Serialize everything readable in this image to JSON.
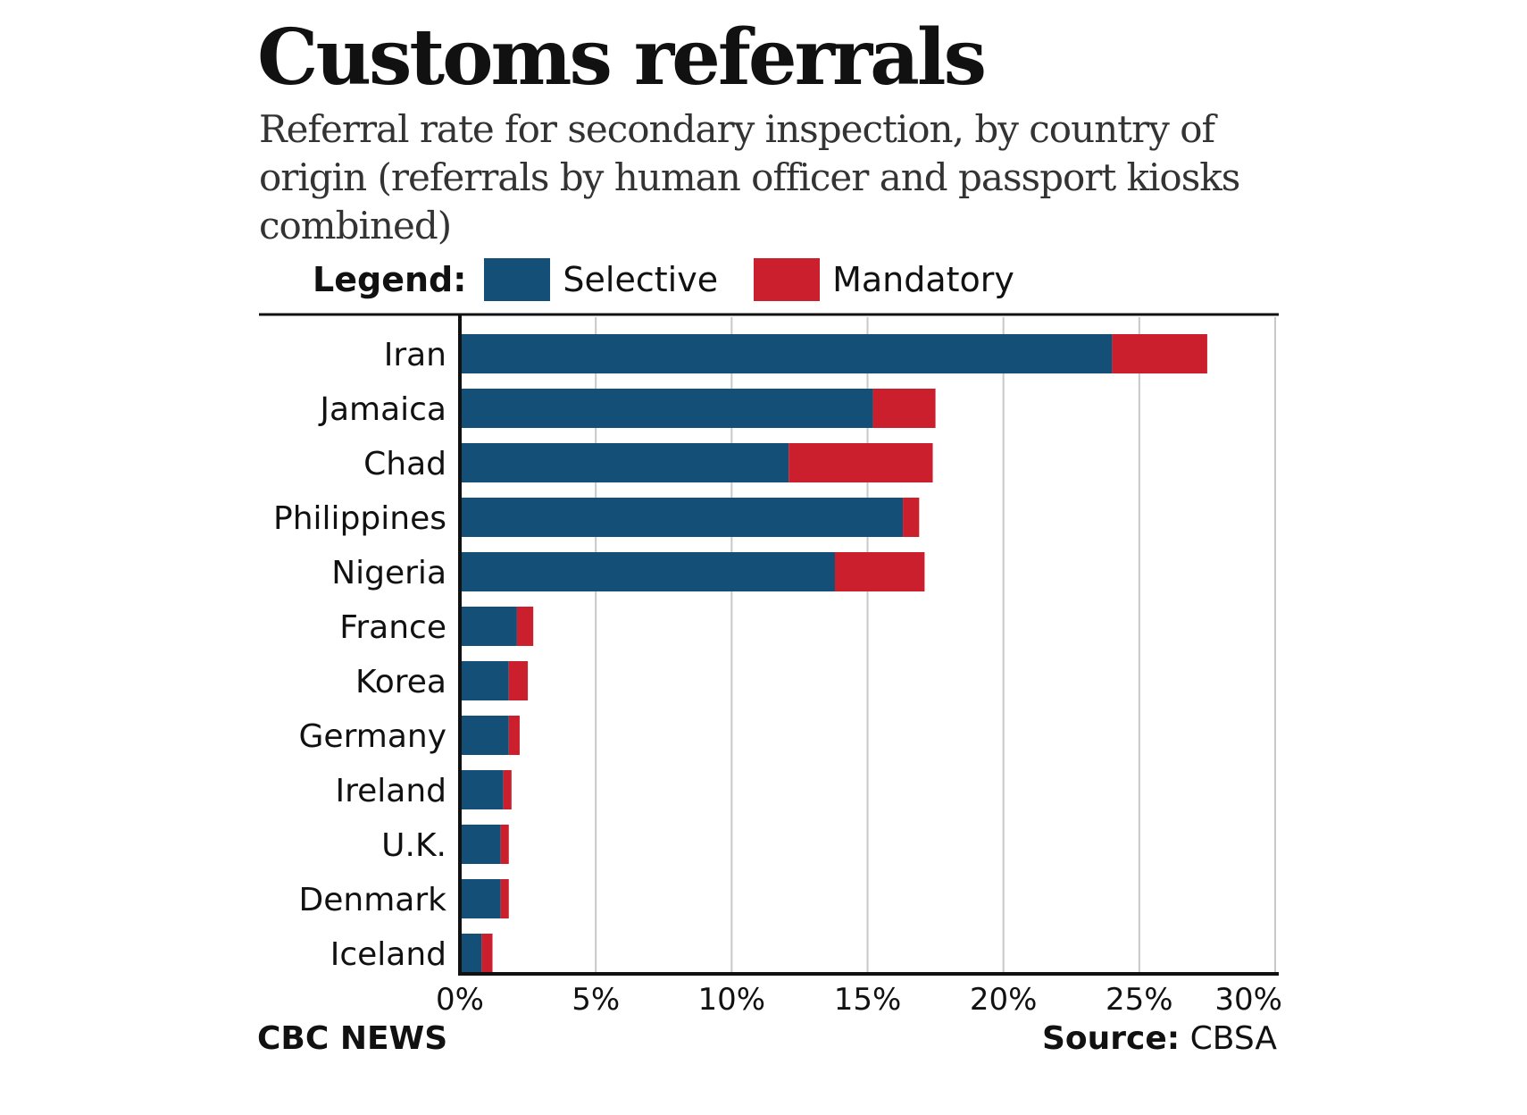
{
  "colors": {
    "selective": "#134f76",
    "mandatory": "#cc1f2e",
    "grid": "#c8c8c8",
    "axis": "#111111"
  },
  "footer": {
    "brand": "CBC NEWS",
    "source_label": "Source:",
    "source_value": "CBSA"
  },
  "chart_data": {
    "type": "bar",
    "orientation": "horizontal",
    "stacked": true,
    "title": "Customs referrals",
    "subtitle": "Referral rate for secondary inspection, by country of origin (referrals by human officer and passport kiosks combined)",
    "legend_title": "Legend:",
    "categories": [
      "Iran",
      "Jamaica",
      "Chad",
      "Philippines",
      "Nigeria",
      "France",
      "Korea",
      "Germany",
      "Ireland",
      "U.K.",
      "Denmark",
      "Iceland"
    ],
    "series": [
      {
        "name": "Selective",
        "values": [
          24.0,
          15.2,
          12.1,
          16.3,
          13.8,
          2.1,
          1.8,
          1.8,
          1.6,
          1.5,
          1.5,
          0.8
        ]
      },
      {
        "name": "Mandatory",
        "values": [
          3.5,
          2.3,
          5.3,
          0.6,
          3.3,
          0.6,
          0.7,
          0.4,
          0.3,
          0.3,
          0.3,
          0.4
        ]
      }
    ],
    "xlim": [
      0,
      30
    ],
    "xticks": [
      0,
      5,
      10,
      15,
      20,
      25,
      30
    ],
    "xtick_labels": [
      "0%",
      "5%",
      "10%",
      "15%",
      "20%",
      "25%",
      "30%"
    ],
    "grid": true
  }
}
